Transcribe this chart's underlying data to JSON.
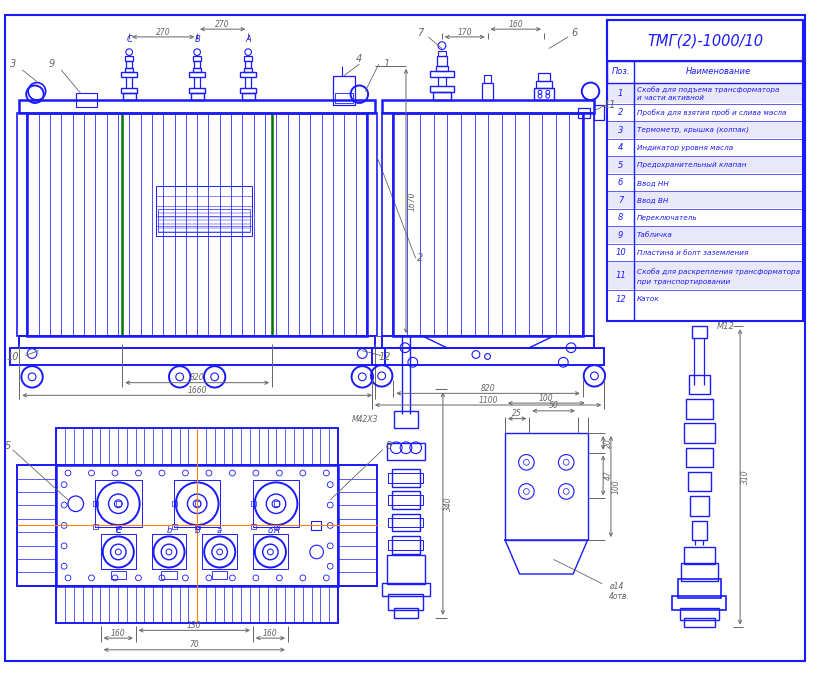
{
  "title": "ТМГ(2)-1000/10",
  "bg_color": "#ffffff",
  "DC": "#1a1aff",
  "GC": "#007700",
  "DIM": "#666666",
  "OC": "#ff8800",
  "parts_list": [
    [
      "1",
      "Скоба для подъема трансформатора",
      "и части активной"
    ],
    [
      "2",
      "Пробка для взятия проб и слива масла",
      ""
    ],
    [
      "3",
      "Термометр, крышка (колпак)",
      ""
    ],
    [
      "4",
      "Индикатор уровня масла",
      ""
    ],
    [
      "5",
      "Предохранительный клапан",
      ""
    ],
    [
      "6",
      "Ввод НН",
      ""
    ],
    [
      "7",
      "Ввод ВН",
      ""
    ],
    [
      "8",
      "Переключатель",
      ""
    ],
    [
      "9",
      "Табличка",
      ""
    ],
    [
      "10",
      "Пластина и болт заземления",
      ""
    ],
    [
      "11",
      "Скоба для раскрепления трансформатора",
      "при транспортировании"
    ],
    [
      "12",
      "Каток",
      ""
    ]
  ]
}
